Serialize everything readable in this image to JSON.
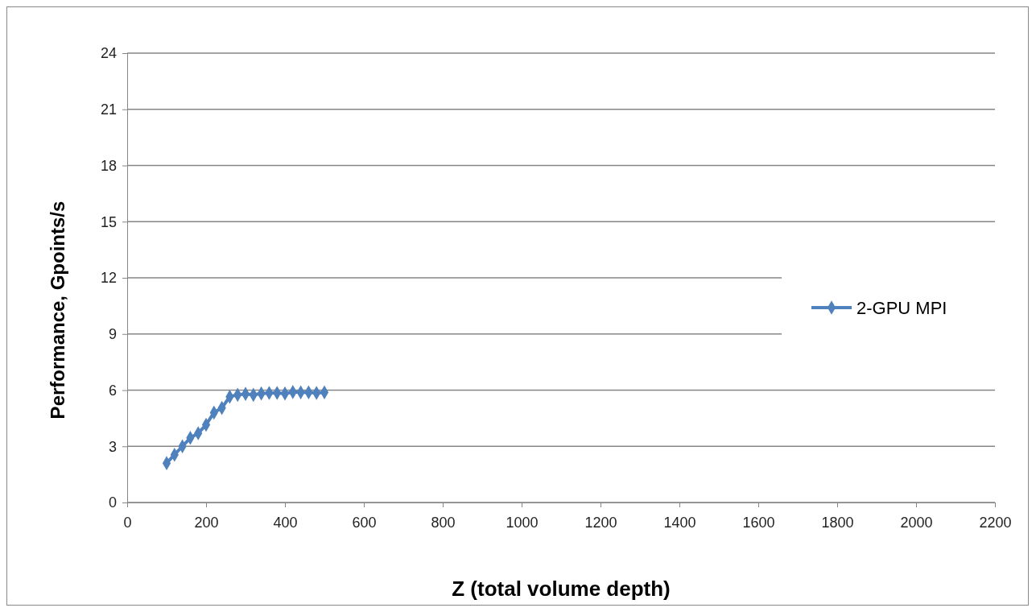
{
  "chart_data": {
    "type": "line",
    "xlabel": "Z (total volume depth)",
    "ylabel": "Performance, Gpoints/s",
    "x": [
      100,
      120,
      140,
      160,
      180,
      200,
      220,
      240,
      260,
      280,
      300,
      320,
      340,
      360,
      380,
      400,
      420,
      440,
      460,
      480,
      500
    ],
    "series": [
      {
        "name": "2-GPU MPI",
        "color": "#4f81bd",
        "values": [
          2.1,
          2.55,
          3.0,
          3.45,
          3.7,
          4.15,
          4.8,
          5.05,
          5.65,
          5.75,
          5.8,
          5.75,
          5.82,
          5.85,
          5.85,
          5.82,
          5.9,
          5.88,
          5.88,
          5.85,
          5.88
        ]
      }
    ],
    "xlim": [
      0,
      2200
    ],
    "xticks": [
      0,
      200,
      400,
      600,
      800,
      1000,
      1200,
      1400,
      1600,
      1800,
      2000,
      2200
    ],
    "ylim": [
      0,
      24
    ],
    "yticks": [
      0,
      3,
      6,
      9,
      12,
      15,
      18,
      21,
      24
    ],
    "grid": "y",
    "legend": "right",
    "marker": "diamond",
    "line_style": "solid"
  }
}
